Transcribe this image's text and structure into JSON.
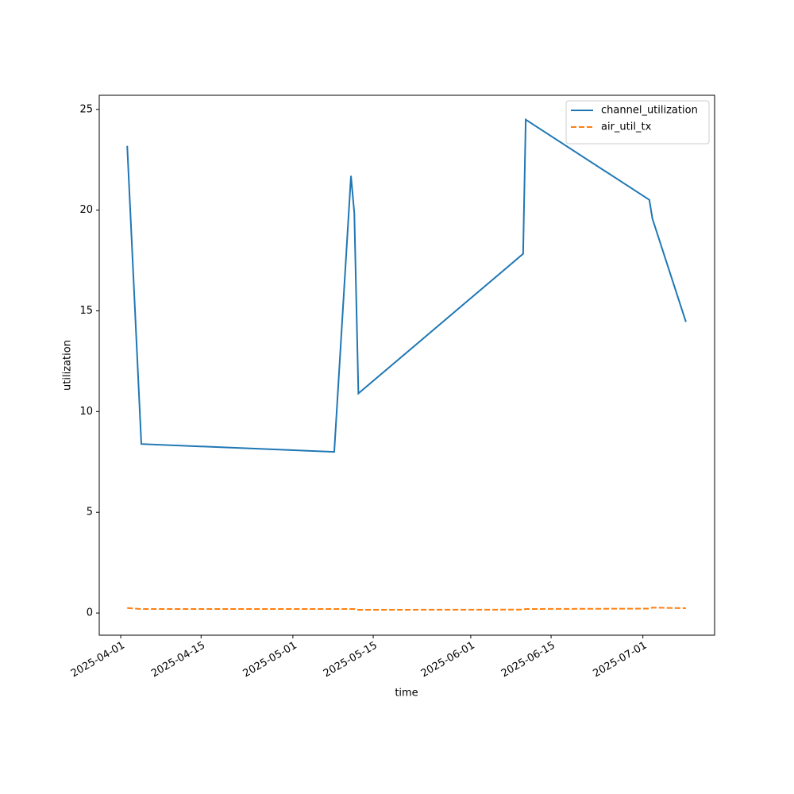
{
  "chart_data": {
    "type": "line",
    "xlabel": "time",
    "ylabel": "utilization",
    "x": [
      "2025-04-02T03:00",
      "2025-04-04T14:00",
      "2025-05-08T05:00",
      "2025-05-11T03:00",
      "2025-05-11T17:00",
      "2025-05-12T10:00",
      "2025-06-10T03:00",
      "2025-06-10T14:00",
      "2025-07-02T03:00",
      "2025-07-02T16:00",
      "2025-07-08T12:00"
    ],
    "series": [
      {
        "name": "channel_utilization",
        "color": "#1f77b4",
        "dash": "solid",
        "values": [
          23.19,
          8.39,
          8.0,
          21.7,
          19.84,
          10.9,
          17.83,
          24.49,
          20.51,
          19.57,
          14.45
        ]
      },
      {
        "name": "air_util_tx",
        "color": "#ff7f0e",
        "dash": "dashed",
        "values": [
          0.25,
          0.2,
          0.2,
          0.2,
          0.2,
          0.16,
          0.17,
          0.2,
          0.22,
          0.27,
          0.24
        ]
      }
    ],
    "xlim": [
      "2025-03-28T06:00",
      "2025-07-13T12:00"
    ],
    "xticks": [
      "2025-04-01",
      "2025-04-15",
      "2025-05-01",
      "2025-05-15",
      "2025-06-01",
      "2025-06-15",
      "2025-07-01"
    ],
    "ylim": [
      -1.1,
      25.7
    ],
    "yticks": [
      0,
      5,
      10,
      15,
      20,
      25
    ],
    "grid": false,
    "legend": "upper right"
  }
}
